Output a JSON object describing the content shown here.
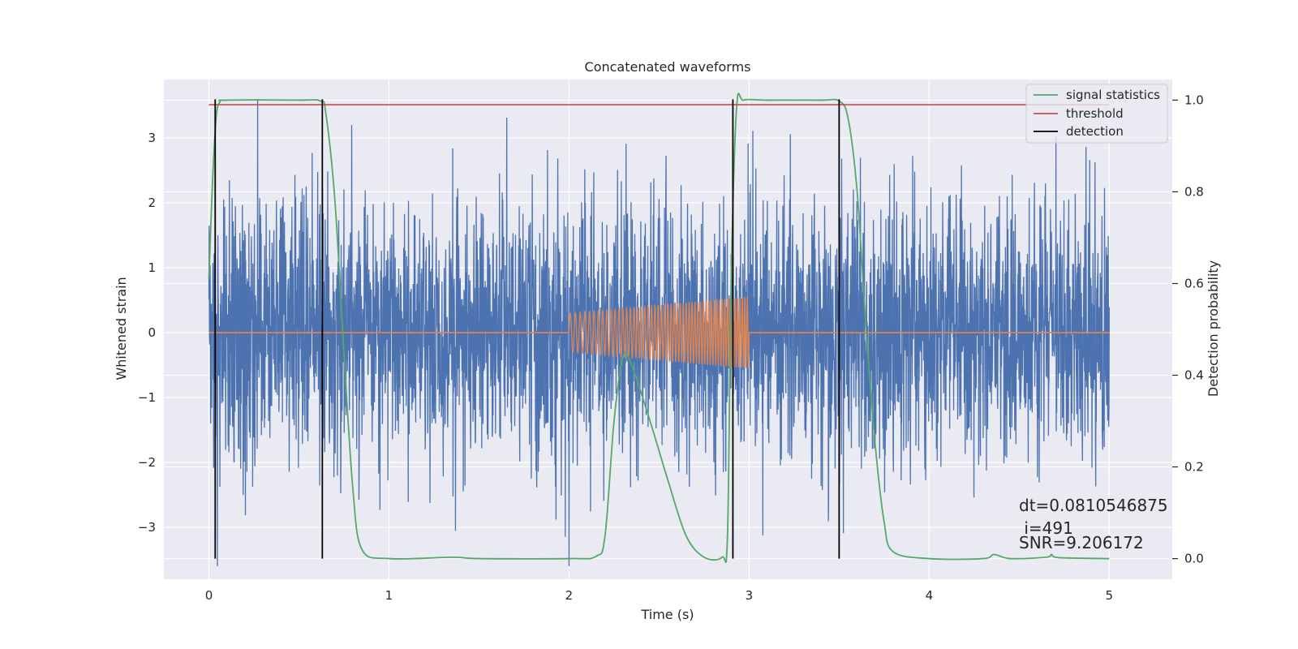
{
  "chart_data": {
    "type": "line",
    "title": "Concatenated waveforms",
    "xlabel": "Time (s)",
    "ylabel": "Whitened strain",
    "y2label": "Detection probability",
    "xlim": [
      -0.25,
      5.35
    ],
    "ylim": [
      -3.8,
      3.9
    ],
    "y2lim": [
      -0.045,
      1.045
    ],
    "xticks": [
      0,
      1,
      2,
      3,
      4,
      5
    ],
    "yticks": [
      -3,
      -2,
      -1,
      0,
      1,
      2,
      3
    ],
    "y2ticks": [
      0.0,
      0.2,
      0.4,
      0.6,
      0.8,
      1.0
    ],
    "ytick_labels": [
      "−3",
      "−2",
      "−1",
      "0",
      "1",
      "2",
      "3"
    ],
    "y2tick_labels": [
      "0.0",
      "0.2",
      "0.4",
      "0.6",
      "0.8",
      "1.0"
    ],
    "grid": true,
    "legend_position": "top-right",
    "colors": {
      "background": "#eaeaf2",
      "noise": "#4c72b0",
      "injection": "#dd8452",
      "signal_statistics": "#55a868",
      "threshold": "#c44e52",
      "detection": "#000000"
    },
    "series": [
      {
        "name": "",
        "kind": "noise",
        "x_range": [
          0,
          5
        ],
        "typical_amplitude": 1.0,
        "peak_amplitude": 3.6
      },
      {
        "name": "",
        "kind": "injection",
        "x_range": [
          2.0,
          3.0
        ],
        "amplitude_start": 0.3,
        "amplitude_end": 0.55
      },
      {
        "name": "signal statistics",
        "axis": "right",
        "x": [
          0.0,
          0.02,
          0.04,
          0.06,
          0.1,
          0.5,
          0.62,
          0.65,
          0.7,
          0.75,
          0.8,
          0.85,
          1.0,
          1.35,
          1.5,
          2.0,
          2.15,
          2.2,
          2.25,
          2.3,
          2.35,
          2.45,
          2.55,
          2.65,
          2.75,
          2.85,
          2.88,
          2.9,
          2.93,
          2.97,
          3.1,
          3.4,
          3.5,
          3.55,
          3.6,
          3.65,
          3.7,
          3.75,
          3.8,
          4.0,
          4.3,
          4.36,
          4.45,
          4.65,
          4.68,
          4.72,
          5.0
        ],
        "y": [
          0.61,
          0.82,
          0.96,
          0.995,
          1.0,
          1.0,
          0.998,
          0.97,
          0.78,
          0.45,
          0.15,
          0.02,
          0.0,
          0.003,
          0.0,
          0.0,
          0.005,
          0.05,
          0.3,
          0.44,
          0.42,
          0.3,
          0.17,
          0.05,
          0.003,
          0.003,
          0.05,
          0.6,
          0.98,
          1.0,
          1.0,
          1.0,
          0.998,
          0.96,
          0.8,
          0.5,
          0.25,
          0.08,
          0.015,
          0.0,
          0.0,
          0.009,
          0.0,
          0.003,
          0.009,
          0.002,
          0.0
        ]
      },
      {
        "name": "threshold",
        "axis": "right",
        "x": [
          0,
          5
        ],
        "y": [
          0.99,
          0.99
        ]
      },
      {
        "name": "detection",
        "axis": "right",
        "segments": [
          {
            "x": 0.035,
            "y": [
              0.0,
              1.0
            ]
          },
          {
            "x": 0.63,
            "y": [
              0.0,
              1.0
            ]
          },
          {
            "x": 2.91,
            "y": [
              0.0,
              1.0
            ]
          },
          {
            "x": 3.5,
            "y": [
              0.0,
              1.0
            ]
          }
        ]
      }
    ],
    "annotations": [
      "dt=0.0810546875",
      " i=491",
      "SNR=9.206172"
    ]
  }
}
